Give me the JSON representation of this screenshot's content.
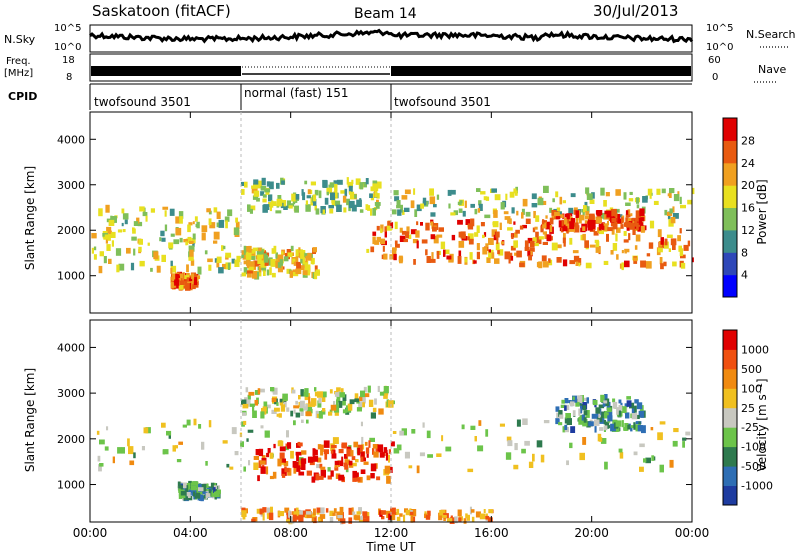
{
  "header": {
    "station": "Saskatoon (fitACF)",
    "beam": "Beam 14",
    "date": "30/Jul/2013"
  },
  "noise_panel": {
    "left_label": "N.Sky",
    "left_ticks": [
      "10^5",
      "10^0"
    ],
    "right_ticks": [
      "10^5",
      "10^0"
    ],
    "right_label": "N.Search"
  },
  "freq_panel": {
    "left_label_1": "Freq.",
    "left_label_2": "[MHz]",
    "left_ticks": [
      "18",
      "8"
    ],
    "right_ticks": [
      "60",
      "0"
    ],
    "right_label": "Nave"
  },
  "cpid_panel": {
    "label": "CPID",
    "segments": [
      {
        "name": "twofsound 3501",
        "start_hour": 0,
        "end_hour": 6
      },
      {
        "name": "normal (fast) 151",
        "start_hour": 6,
        "end_hour": 12
      },
      {
        "name": "twofsound 3501",
        "start_hour": 12,
        "end_hour": 24
      }
    ]
  },
  "chart_data": [
    {
      "type": "heatmap",
      "title": "",
      "quantity": "Power",
      "xlabel": "Time UT",
      "ylabel": "Slant Range [km]",
      "xlim": [
        0,
        24
      ],
      "ylim": [
        180,
        4600
      ],
      "x_ticks": [
        "00:00",
        "04:00",
        "08:00",
        "12:00",
        "16:00",
        "20:00",
        "00:00"
      ],
      "y_ticks": [
        "1000",
        "2000",
        "3000",
        "4000"
      ],
      "colorbar": {
        "label": "Power [dB]",
        "ticks": [
          "4",
          "8",
          "12",
          "16",
          "20",
          "24",
          "28"
        ],
        "colors": [
          "#0000ff",
          "#2e47b8",
          "#3c8c8c",
          "#7fbf5a",
          "#e8e020",
          "#f0a020",
          "#e85a10",
          "#e00000"
        ]
      },
      "echo_regions": [
        {
          "t0": 0,
          "t1": 6,
          "r0": 1100,
          "r1": 2500,
          "level": 0.55
        },
        {
          "t0": 3.2,
          "t1": 4.2,
          "r0": 750,
          "r1": 1000,
          "level": 0.8
        },
        {
          "t0": 6,
          "t1": 9,
          "r0": 1000,
          "r1": 1600,
          "level": 0.6
        },
        {
          "t0": 6,
          "t1": 11.5,
          "r0": 2400,
          "r1": 3100,
          "level": 0.45
        },
        {
          "t0": 11,
          "t1": 18,
          "r0": 1300,
          "r1": 2200,
          "level": 0.75
        },
        {
          "t0": 12,
          "t1": 24,
          "r0": 2300,
          "r1": 2900,
          "level": 0.5
        },
        {
          "t0": 16,
          "t1": 24,
          "r0": 1200,
          "r1": 2300,
          "level": 0.7
        },
        {
          "t0": 18,
          "t1": 22,
          "r0": 2000,
          "r1": 2400,
          "level": 0.85
        }
      ]
    },
    {
      "type": "heatmap",
      "title": "",
      "quantity": "Velocity",
      "xlabel": "Time UT",
      "ylabel": "Slant Range [km]",
      "xlim": [
        0,
        24
      ],
      "ylim": [
        180,
        4600
      ],
      "x_ticks": [
        "00:00",
        "04:00",
        "08:00",
        "12:00",
        "16:00",
        "20:00",
        "00:00"
      ],
      "y_ticks": [
        "1000",
        "2000",
        "3000",
        "4000"
      ],
      "colorbar": {
        "label": "Velocity [m s⁻¹]",
        "ticks": [
          "1000",
          "500",
          "100",
          "25",
          "-25",
          "-100",
          "-500",
          "-1000"
        ],
        "colors": [
          "#1e3ca0",
          "#2e6eb4",
          "#2e7a4e",
          "#6cc44a",
          "#c8c8c0",
          "#f0c020",
          "#f08a10",
          "#f05010",
          "#e00000"
        ]
      },
      "echo_regions": [
        {
          "t0": 0,
          "t1": 24,
          "r0": 1300,
          "r1": 2400,
          "level": 0.5
        },
        {
          "t0": 6,
          "t1": 12,
          "r0": 2500,
          "r1": 3100,
          "level": 0.5
        },
        {
          "t0": 6.5,
          "t1": 12,
          "r0": 1100,
          "r1": 1900,
          "level": 0.85
        },
        {
          "t0": 3.5,
          "t1": 5,
          "r0": 700,
          "r1": 1000,
          "level": 0.3
        },
        {
          "t0": 18.5,
          "t1": 22,
          "r0": 2200,
          "r1": 2900,
          "level": 0.3
        },
        {
          "t0": 6,
          "t1": 16,
          "r0": 200,
          "r1": 450,
          "level": 0.7
        }
      ]
    }
  ]
}
